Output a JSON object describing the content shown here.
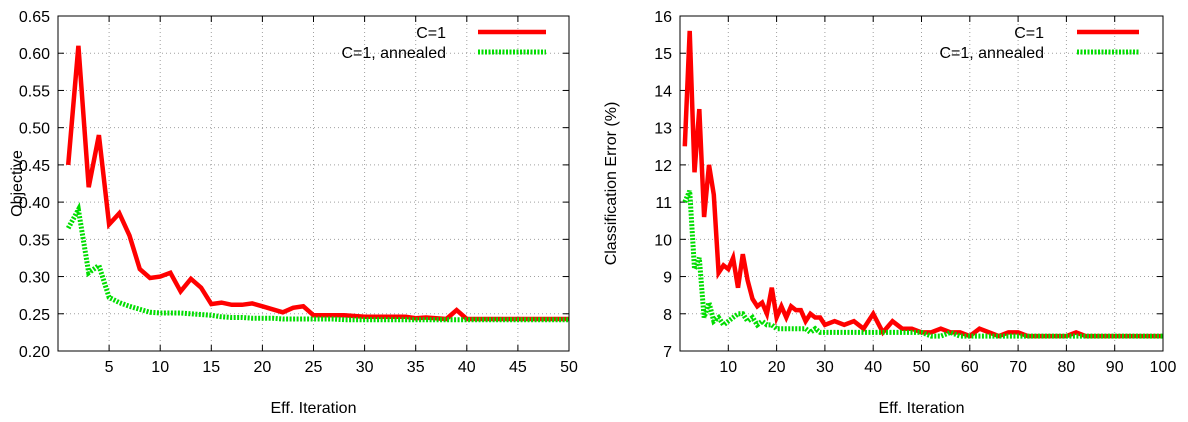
{
  "chart_data": [
    {
      "type": "line",
      "xlabel": "Eff. Iteration",
      "ylabel": "Objective",
      "xlim": [
        0,
        50
      ],
      "ylim": [
        0.2,
        0.65
      ],
      "xticks": [
        5,
        10,
        15,
        20,
        25,
        30,
        35,
        40,
        45,
        50
      ],
      "yticks": [
        0.2,
        0.25,
        0.3,
        0.35,
        0.4,
        0.45,
        0.5,
        0.55,
        0.6,
        0.65
      ],
      "grid": true,
      "legend": "top-right",
      "series": [
        {
          "name": "C=1",
          "color": "#ff0000",
          "style": "solid",
          "x": [
            1,
            2,
            3,
            4,
            5,
            6,
            7,
            8,
            9,
            10,
            11,
            12,
            13,
            14,
            15,
            16,
            17,
            18,
            19,
            20,
            21,
            22,
            23,
            24,
            25,
            26,
            27,
            28,
            29,
            30,
            31,
            32,
            33,
            34,
            35,
            36,
            37,
            38,
            39,
            40,
            41,
            42,
            43,
            44,
            45,
            46,
            47,
            48,
            49,
            50
          ],
          "y": [
            0.45,
            0.61,
            0.42,
            0.49,
            0.37,
            0.385,
            0.355,
            0.31,
            0.298,
            0.3,
            0.305,
            0.28,
            0.297,
            0.285,
            0.263,
            0.265,
            0.262,
            0.262,
            0.264,
            0.26,
            0.256,
            0.252,
            0.258,
            0.26,
            0.248,
            0.248,
            0.248,
            0.248,
            0.247,
            0.246,
            0.246,
            0.246,
            0.246,
            0.246,
            0.244,
            0.245,
            0.244,
            0.243,
            0.255,
            0.243,
            0.243,
            0.243,
            0.243,
            0.243,
            0.243,
            0.243,
            0.243,
            0.243,
            0.243,
            0.243
          ]
        },
        {
          "name": "C=1, annealed",
          "color": "#00dd00",
          "style": "dotted",
          "x": [
            1,
            2,
            3,
            4,
            5,
            6,
            7,
            8,
            9,
            10,
            11,
            12,
            13,
            14,
            15,
            16,
            17,
            18,
            19,
            20,
            21,
            22,
            23,
            24,
            25,
            26,
            27,
            28,
            29,
            30,
            31,
            32,
            33,
            34,
            35,
            36,
            37,
            38,
            39,
            40,
            41,
            42,
            43,
            44,
            45,
            46,
            47,
            48,
            49,
            50
          ],
          "y": [
            0.365,
            0.39,
            0.305,
            0.315,
            0.272,
            0.265,
            0.26,
            0.256,
            0.252,
            0.251,
            0.251,
            0.251,
            0.25,
            0.249,
            0.248,
            0.246,
            0.245,
            0.245,
            0.244,
            0.244,
            0.244,
            0.243,
            0.243,
            0.243,
            0.243,
            0.243,
            0.243,
            0.242,
            0.242,
            0.242,
            0.242,
            0.242,
            0.242,
            0.242,
            0.242,
            0.242,
            0.242,
            0.242,
            0.242,
            0.242,
            0.242,
            0.242,
            0.242,
            0.242,
            0.242,
            0.242,
            0.242,
            0.242,
            0.242,
            0.242
          ]
        }
      ]
    },
    {
      "type": "line",
      "xlabel": "Eff. Iteration",
      "ylabel": "Classification Error (%)",
      "xlim": [
        0,
        100
      ],
      "ylim": [
        7,
        16
      ],
      "xticks": [
        10,
        20,
        30,
        40,
        50,
        60,
        70,
        80,
        90,
        100
      ],
      "yticks": [
        7,
        8,
        9,
        10,
        11,
        12,
        13,
        14,
        15,
        16
      ],
      "grid": true,
      "legend": "top-right",
      "series": [
        {
          "name": "C=1",
          "color": "#ff0000",
          "style": "solid",
          "x": [
            1,
            2,
            3,
            4,
            5,
            6,
            7,
            8,
            9,
            10,
            11,
            12,
            13,
            14,
            15,
            16,
            17,
            18,
            19,
            20,
            21,
            22,
            23,
            24,
            25,
            26,
            27,
            28,
            29,
            30,
            32,
            34,
            36,
            38,
            40,
            42,
            44,
            46,
            48,
            50,
            52,
            54,
            56,
            58,
            60,
            62,
            64,
            66,
            68,
            70,
            72,
            74,
            76,
            78,
            80,
            82,
            84,
            86,
            88,
            90,
            92,
            94,
            96,
            98,
            100
          ],
          "y": [
            12.5,
            15.6,
            11.8,
            13.5,
            10.6,
            12.0,
            11.2,
            9.1,
            9.3,
            9.2,
            9.5,
            8.7,
            9.6,
            8.9,
            8.4,
            8.2,
            8.3,
            8.0,
            8.7,
            7.9,
            8.2,
            7.9,
            8.2,
            8.1,
            8.1,
            7.8,
            8.0,
            7.9,
            7.9,
            7.7,
            7.8,
            7.7,
            7.8,
            7.6,
            8.0,
            7.5,
            7.8,
            7.6,
            7.6,
            7.5,
            7.5,
            7.6,
            7.5,
            7.5,
            7.4,
            7.6,
            7.5,
            7.4,
            7.5,
            7.5,
            7.4,
            7.4,
            7.4,
            7.4,
            7.4,
            7.5,
            7.4,
            7.4,
            7.4,
            7.4,
            7.4,
            7.4,
            7.4,
            7.4,
            7.4
          ]
        },
        {
          "name": "C=1, annealed",
          "color": "#00dd00",
          "style": "dotted",
          "x": [
            1,
            2,
            3,
            4,
            5,
            6,
            7,
            8,
            9,
            10,
            11,
            12,
            13,
            14,
            15,
            16,
            17,
            18,
            19,
            20,
            21,
            22,
            23,
            24,
            25,
            26,
            27,
            28,
            29,
            30,
            32,
            34,
            36,
            38,
            40,
            42,
            44,
            46,
            48,
            50,
            52,
            54,
            56,
            58,
            60,
            62,
            64,
            66,
            68,
            70,
            72,
            74,
            76,
            78,
            80,
            82,
            84,
            86,
            88,
            90,
            92,
            94,
            96,
            98,
            100
          ],
          "y": [
            11.0,
            11.3,
            9.2,
            9.5,
            7.9,
            8.3,
            7.8,
            7.9,
            7.7,
            7.8,
            7.9,
            8.0,
            8.0,
            7.8,
            7.9,
            7.7,
            7.8,
            7.7,
            7.7,
            7.6,
            7.6,
            7.6,
            7.6,
            7.6,
            7.6,
            7.6,
            7.5,
            7.6,
            7.5,
            7.5,
            7.5,
            7.5,
            7.5,
            7.5,
            7.5,
            7.5,
            7.5,
            7.5,
            7.5,
            7.5,
            7.4,
            7.4,
            7.5,
            7.4,
            7.4,
            7.4,
            7.4,
            7.4,
            7.4,
            7.4,
            7.4,
            7.4,
            7.4,
            7.4,
            7.4,
            7.4,
            7.4,
            7.4,
            7.4,
            7.4,
            7.4,
            7.4,
            7.4,
            7.4,
            7.4
          ]
        }
      ]
    }
  ]
}
